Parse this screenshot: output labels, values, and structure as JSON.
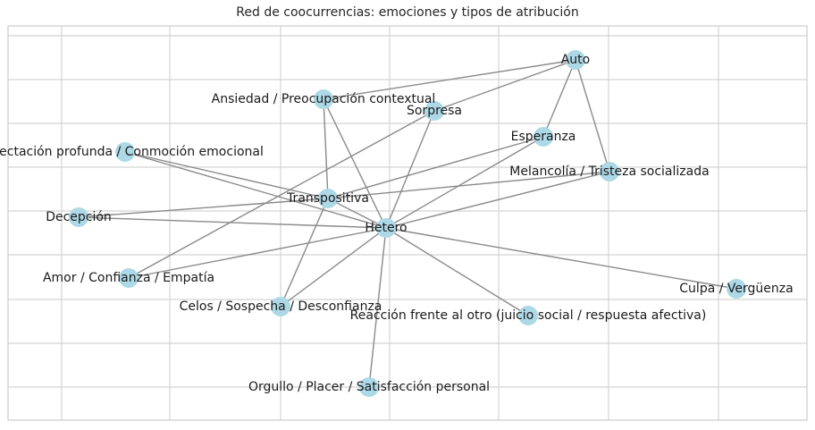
{
  "title": "Red de coocurrencias: emociones y tipos de atribución",
  "colors": {
    "node": "#add8e6",
    "edge": "#8a8a8a",
    "grid": "#d4d4d4",
    "text": "#1a1a1a"
  },
  "nodes": [
    {
      "id": "auto",
      "label": "Auto"
    },
    {
      "id": "ansiedad",
      "label": "Ansiedad / Preocupación contextual"
    },
    {
      "id": "sorpresa",
      "label": "Sorpresa"
    },
    {
      "id": "esperanza",
      "label": "Esperanza"
    },
    {
      "id": "afectacion",
      "label": "Afectación profunda / Conmoción emocional"
    },
    {
      "id": "melancolia",
      "label": "Melancolía / Tristeza socializada"
    },
    {
      "id": "transpositiva",
      "label": "Transpositiva"
    },
    {
      "id": "decepcion",
      "label": "Decepción"
    },
    {
      "id": "hetero",
      "label": "Hetero"
    },
    {
      "id": "amor",
      "label": "Amor / Confianza / Empatía"
    },
    {
      "id": "culpa",
      "label": "Culpa / Vergüenza"
    },
    {
      "id": "celos",
      "label": "Celos / Sospecha / Desconfianza"
    },
    {
      "id": "reaccion",
      "label": "Reacción frente al otro (juicio social / respuesta afectiva)"
    },
    {
      "id": "orgullo",
      "label": "Orgullo / Placer / Satisfacción personal"
    }
  ],
  "edges": [
    [
      "auto",
      "ansiedad"
    ],
    [
      "auto",
      "sorpresa"
    ],
    [
      "auto",
      "esperanza"
    ],
    [
      "auto",
      "melancolia"
    ],
    [
      "ansiedad",
      "transpositiva"
    ],
    [
      "ansiedad",
      "hetero"
    ],
    [
      "sorpresa",
      "amor"
    ],
    [
      "sorpresa",
      "hetero"
    ],
    [
      "esperanza",
      "transpositiva"
    ],
    [
      "esperanza",
      "hetero"
    ],
    [
      "afectacion",
      "transpositiva"
    ],
    [
      "afectacion",
      "hetero"
    ],
    [
      "melancolia",
      "transpositiva"
    ],
    [
      "melancolia",
      "hetero"
    ],
    [
      "transpositiva",
      "decepcion"
    ],
    [
      "transpositiva",
      "hetero"
    ],
    [
      "transpositiva",
      "celos"
    ],
    [
      "decepcion",
      "hetero"
    ],
    [
      "hetero",
      "amor"
    ],
    [
      "hetero",
      "celos"
    ],
    [
      "hetero",
      "culpa"
    ],
    [
      "hetero",
      "reaccion"
    ],
    [
      "hetero",
      "orgullo"
    ]
  ]
}
